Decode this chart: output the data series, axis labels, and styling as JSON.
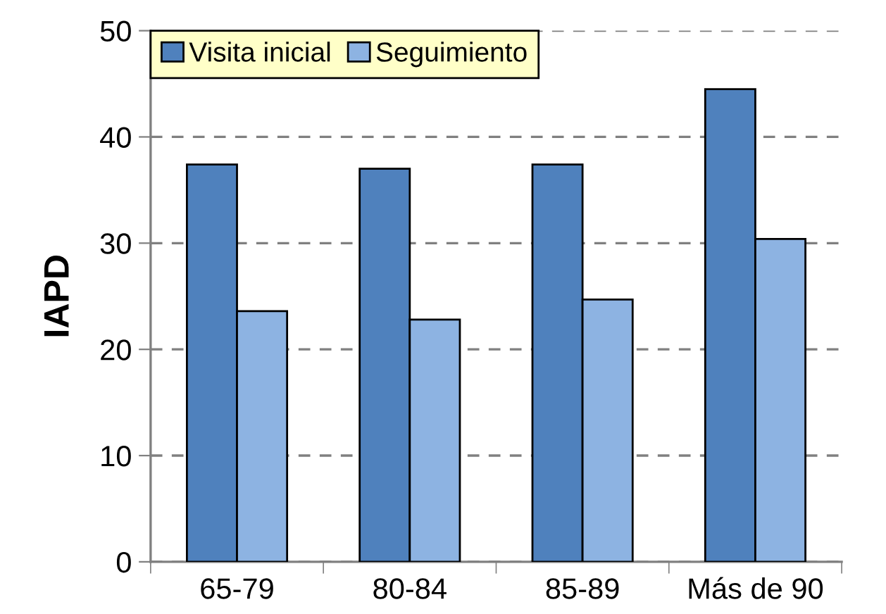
{
  "chart_data": {
    "type": "bar",
    "ylabel": "IAPD",
    "categories": [
      "65-79",
      "80-84",
      "85-89",
      "Más de 90"
    ],
    "series": [
      {
        "name": "Visita inicial",
        "color": "#4f81bd",
        "values": [
          37.4,
          37.0,
          37.4,
          44.5
        ]
      },
      {
        "name": "Seguimiento",
        "color": "#8db3e2",
        "values": [
          23.6,
          22.8,
          24.7,
          30.4
        ]
      }
    ],
    "ylim": [
      0,
      50
    ],
    "yticks": [
      0,
      10,
      20,
      30,
      40,
      50
    ],
    "grid": "y",
    "legend": "top left"
  }
}
